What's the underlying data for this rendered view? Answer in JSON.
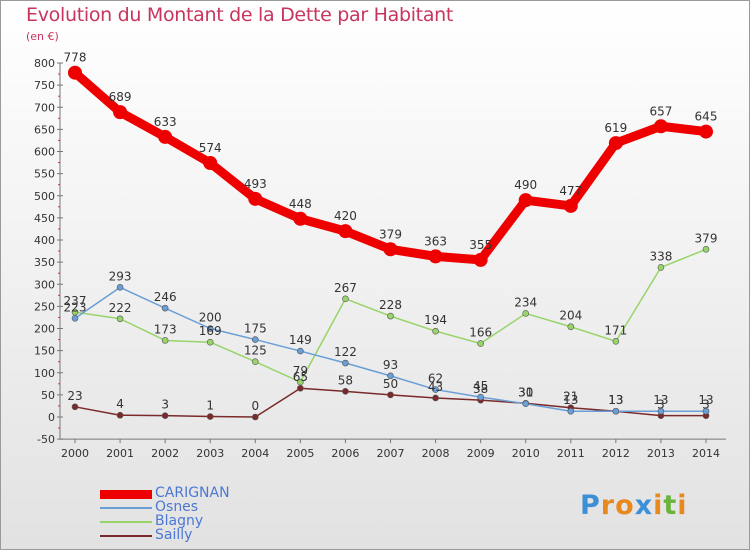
{
  "title": "Evolution du Montant de la Dette par Habitant",
  "subtitle": "(en €)",
  "logo": {
    "parts": [
      {
        "text": "P",
        "color": "#3d8fd6"
      },
      {
        "text": "r",
        "color": "#e8891f"
      },
      {
        "text": "o",
        "color": "#e8891f"
      },
      {
        "text": "x",
        "color": "#3d8fd6"
      },
      {
        "text": "i",
        "color": "#e8891f"
      },
      {
        "text": "t",
        "color": "#6bb33b"
      },
      {
        "text": "i",
        "color": "#e8891f"
      }
    ]
  },
  "chart_data": {
    "type": "line",
    "x": [
      2000,
      2001,
      2002,
      2003,
      2004,
      2005,
      2006,
      2007,
      2008,
      2009,
      2010,
      2011,
      2012,
      2013,
      2014
    ],
    "ylim": [
      -50,
      800
    ],
    "yticks": [
      -50,
      0,
      50,
      100,
      150,
      200,
      250,
      300,
      350,
      400,
      450,
      500,
      550,
      600,
      650,
      700,
      750,
      800
    ],
    "grid": false,
    "legend_position": "bottom-left",
    "series": [
      {
        "name": "CARIGNAN",
        "color": "#ee0000",
        "values": [
          778,
          689,
          633,
          574,
          493,
          448,
          420,
          379,
          363,
          355,
          490,
          477,
          619,
          657,
          645
        ]
      },
      {
        "name": "Osnes",
        "color": "#6a9ed6",
        "values": [
          223,
          293,
          246,
          200,
          175,
          149,
          122,
          93,
          62,
          45,
          30,
          13,
          13,
          13,
          13
        ]
      },
      {
        "name": "Blagny",
        "color": "#98d46a",
        "values": [
          237,
          222,
          173,
          169,
          125,
          79,
          267,
          228,
          194,
          166,
          234,
          204,
          171,
          338,
          379
        ]
      },
      {
        "name": "Sailly",
        "color": "#7a2a2a",
        "values": [
          23,
          4,
          3,
          1,
          0,
          65,
          58,
          50,
          43,
          38,
          31,
          21,
          13,
          3,
          3
        ]
      }
    ]
  }
}
